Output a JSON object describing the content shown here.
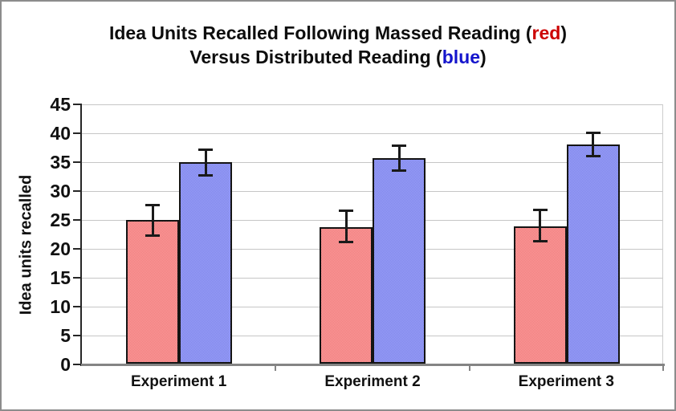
{
  "title": {
    "line1": {
      "pre": "Idea Units Recalled Following Massed Reading (",
      "colored": "red",
      "post": ")"
    },
    "line2": {
      "pre": "Versus Distributed Reading (",
      "colored": "blue",
      "post": ")"
    },
    "accent_red": "#cc0000",
    "accent_blue": "#1414cc"
  },
  "chart_data": {
    "type": "bar",
    "categories": [
      "Experiment 1",
      "Experiment 2",
      "Experiment 3"
    ],
    "series": [
      {
        "name": "Massed Reading",
        "key": "massed",
        "bar_color_light": "#fd9e9e",
        "bar_color_dark": "#ee7a7a",
        "values": [
          25.0,
          23.8,
          23.9
        ],
        "error_low": [
          22.2,
          21.1,
          21.3
        ],
        "error_high": [
          27.6,
          26.6,
          26.8
        ]
      },
      {
        "name": "Distributed Reading",
        "key": "distributed",
        "bar_color_light": "#9ca2fa",
        "bar_color_dark": "#7d83e8",
        "values": [
          35.0,
          35.7,
          38.0
        ],
        "error_low": [
          32.7,
          33.5,
          36.0
        ],
        "error_high": [
          37.2,
          37.9,
          40.2
        ]
      }
    ],
    "xlabel": "",
    "ylabel": "Idea units recalled",
    "ylim": [
      0,
      45
    ],
    "ytick_step": 5,
    "yticks": [
      0,
      5,
      10,
      15,
      20,
      25,
      30,
      35,
      40,
      45
    ],
    "grid": true,
    "legend_position": "encoded-in-title-colors"
  },
  "colors": {
    "gridline": "#c6c6c6",
    "plot_right_edge": "#cccccc",
    "y_axis": "#262626",
    "x_axis": "#848484",
    "error_bar": "#1a1a1a",
    "figure_border": "#8c8c8c",
    "background": "#ffffff",
    "text": "#0d0d0d"
  }
}
